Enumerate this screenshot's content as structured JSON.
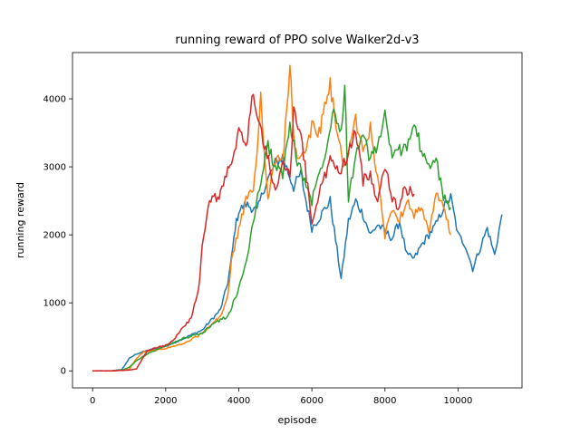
{
  "chart_data": {
    "type": "line",
    "title": "running reward of PPO solve Walker2d-v3",
    "xlabel": "episode",
    "ylabel": "running reward",
    "xlim": [
      -550,
      11750
    ],
    "ylim": [
      -250,
      4680
    ],
    "xticks": [
      0,
      2000,
      4000,
      6000,
      8000,
      10000
    ],
    "yticks": [
      0,
      1000,
      2000,
      3000,
      4000
    ],
    "grid": false,
    "legend": "none",
    "series": [
      {
        "color": "#1f77b4",
        "x": [
          0,
          500,
          800,
          1000,
          1200,
          1500,
          2000,
          2500,
          3000,
          3200,
          3500,
          3700,
          3800,
          3900,
          4000,
          4200,
          4500,
          4700,
          5000,
          5200,
          5500,
          5700,
          5800,
          6000,
          6200,
          6500,
          6800,
          7000,
          7200,
          7400,
          7600,
          7800,
          8000,
          8200,
          8400,
          8600,
          8800,
          9000,
          9200,
          9400,
          9600,
          9800,
          10000,
          10200,
          10400,
          10600,
          10800,
          11000,
          11200
        ],
        "y": [
          0,
          0,
          20,
          180,
          250,
          300,
          360,
          480,
          600,
          720,
          900,
          1300,
          1650,
          2100,
          2350,
          2450,
          2350,
          2700,
          3050,
          3150,
          2700,
          2900,
          2600,
          2100,
          2250,
          2500,
          1350,
          2200,
          2500,
          2300,
          2000,
          2150,
          2050,
          1950,
          2200,
          1700,
          1650,
          1850,
          2000,
          2150,
          2400,
          2550,
          2000,
          1850,
          1500,
          1800,
          2100,
          1700,
          2300
        ]
      },
      {
        "color": "#ff7f0e",
        "x": [
          0,
          500,
          1000,
          1200,
          1400,
          1700,
          2000,
          2500,
          3000,
          3200,
          3500,
          3700,
          3800,
          4000,
          4200,
          4400,
          4500,
          4600,
          4800,
          5000,
          5200,
          5400,
          5500,
          5600,
          5800,
          6000,
          6200,
          6500,
          6700,
          6900,
          7000,
          7200,
          7400,
          7600,
          7800,
          8000,
          8200,
          8400,
          8600,
          8800,
          9000,
          9200,
          9400,
          9600,
          9800
        ],
        "y": [
          0,
          0,
          20,
          180,
          280,
          300,
          330,
          400,
          550,
          650,
          800,
          1100,
          1600,
          2100,
          2500,
          2700,
          3200,
          4050,
          2500,
          3100,
          3100,
          4450,
          3500,
          3050,
          3200,
          3600,
          3500,
          4200,
          3450,
          3000,
          3200,
          3700,
          3200,
          3600,
          2800,
          2000,
          2400,
          2200,
          2550,
          2300,
          2400,
          2000,
          2600,
          2400,
          2000
        ]
      },
      {
        "color": "#2ca02c",
        "x": [
          0,
          500,
          800,
          1000,
          1200,
          1500,
          2000,
          2500,
          3000,
          3300,
          3700,
          4000,
          4200,
          4400,
          4600,
          4800,
          5000,
          5200,
          5400,
          5600,
          5800,
          6000,
          6200,
          6400,
          6600,
          6800,
          6900,
          7000,
          7200,
          7400,
          7600,
          7800,
          8000,
          8200,
          8400,
          8600,
          8800,
          9000,
          9200,
          9400,
          9600,
          9800
        ],
        "y": [
          0,
          0,
          10,
          50,
          150,
          250,
          370,
          480,
          550,
          700,
          800,
          1200,
          1600,
          2200,
          2800,
          3300,
          3000,
          2900,
          3600,
          3100,
          2800,
          2500,
          2900,
          3300,
          3900,
          3500,
          4250,
          2500,
          3200,
          3450,
          3100,
          3300,
          3800,
          3100,
          3250,
          3300,
          3700,
          3200,
          3000,
          3100,
          2550,
          2400
        ]
      },
      {
        "color": "#d62728",
        "x": [
          0,
          500,
          1000,
          1200,
          1500,
          2000,
          2200,
          2500,
          2700,
          2900,
          3000,
          3200,
          3500,
          3700,
          3800,
          4000,
          4200,
          4400,
          4500,
          4700,
          5000,
          5200,
          5400,
          5500,
          5700,
          6000,
          6200,
          6500,
          6800,
          7000,
          7200,
          7400,
          7600,
          7800,
          8000,
          8200,
          8400,
          8500,
          8800
        ],
        "y": [
          0,
          0,
          10,
          30,
          300,
          380,
          450,
          650,
          780,
          1200,
          1800,
          2500,
          2600,
          2950,
          3000,
          3500,
          3300,
          4100,
          3800,
          3300,
          2700,
          3000,
          2900,
          3800,
          3500,
          2200,
          2600,
          3100,
          2900,
          3250,
          3500,
          2800,
          2900,
          2500,
          3050,
          2550,
          2350,
          2700,
          2600
        ]
      }
    ]
  }
}
